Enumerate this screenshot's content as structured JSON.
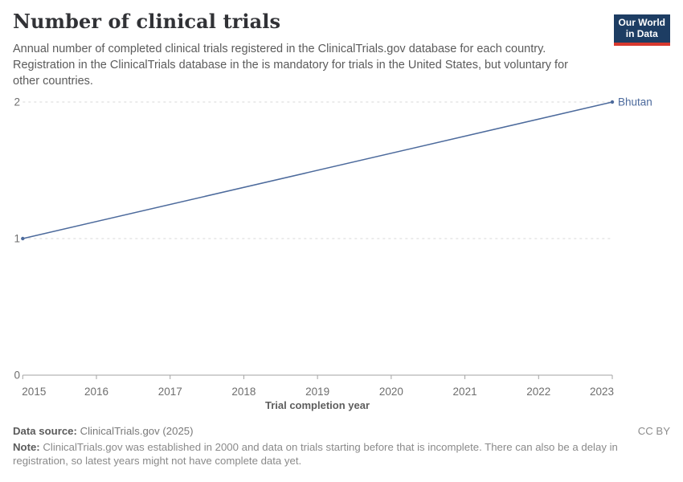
{
  "header": {
    "title": "Number of clinical trials",
    "subtitle": "Annual number of completed clinical trials registered in the ClinicalTrials.gov database for each country. Registration in the ClinicalTrials database in the is mandatory for trials in the United States, but voluntary for other countries.",
    "logo": {
      "line1": "Our World",
      "line2": "in Data"
    }
  },
  "colors": {
    "brand_navy": "#1d3d63",
    "brand_red": "#d7382e",
    "series_blue": "#4c6a9c",
    "grid_line": "#d9d9d9",
    "axis_line": "#a3a3a3",
    "muted_text": "#6e6e6e"
  },
  "chart_data": {
    "type": "line",
    "title": "Number of clinical trials",
    "xlabel": "Trial completion year",
    "ylabel": "",
    "xlim": [
      2015,
      2023
    ],
    "ylim": [
      0,
      2
    ],
    "xticks": [
      2015,
      2016,
      2017,
      2018,
      2019,
      2020,
      2021,
      2022,
      2023
    ],
    "yticks": [
      0,
      1,
      2
    ],
    "grid": "horizontal-dashed",
    "legend_position": "label-at-line-end",
    "series": [
      {
        "name": "Bhutan",
        "color": "#4c6a9c",
        "x": [
          2015,
          2023
        ],
        "values": [
          1,
          2
        ]
      }
    ]
  },
  "footer": {
    "source_label": "Data source:",
    "source_value": "ClinicalTrials.gov (2025)",
    "license": "CC BY",
    "note_label": "Note:",
    "note_text": "ClinicalTrials.gov was established in 2000 and data on trials starting before that is incomplete. There can also be a delay in registration, so latest years might not have complete data yet."
  }
}
